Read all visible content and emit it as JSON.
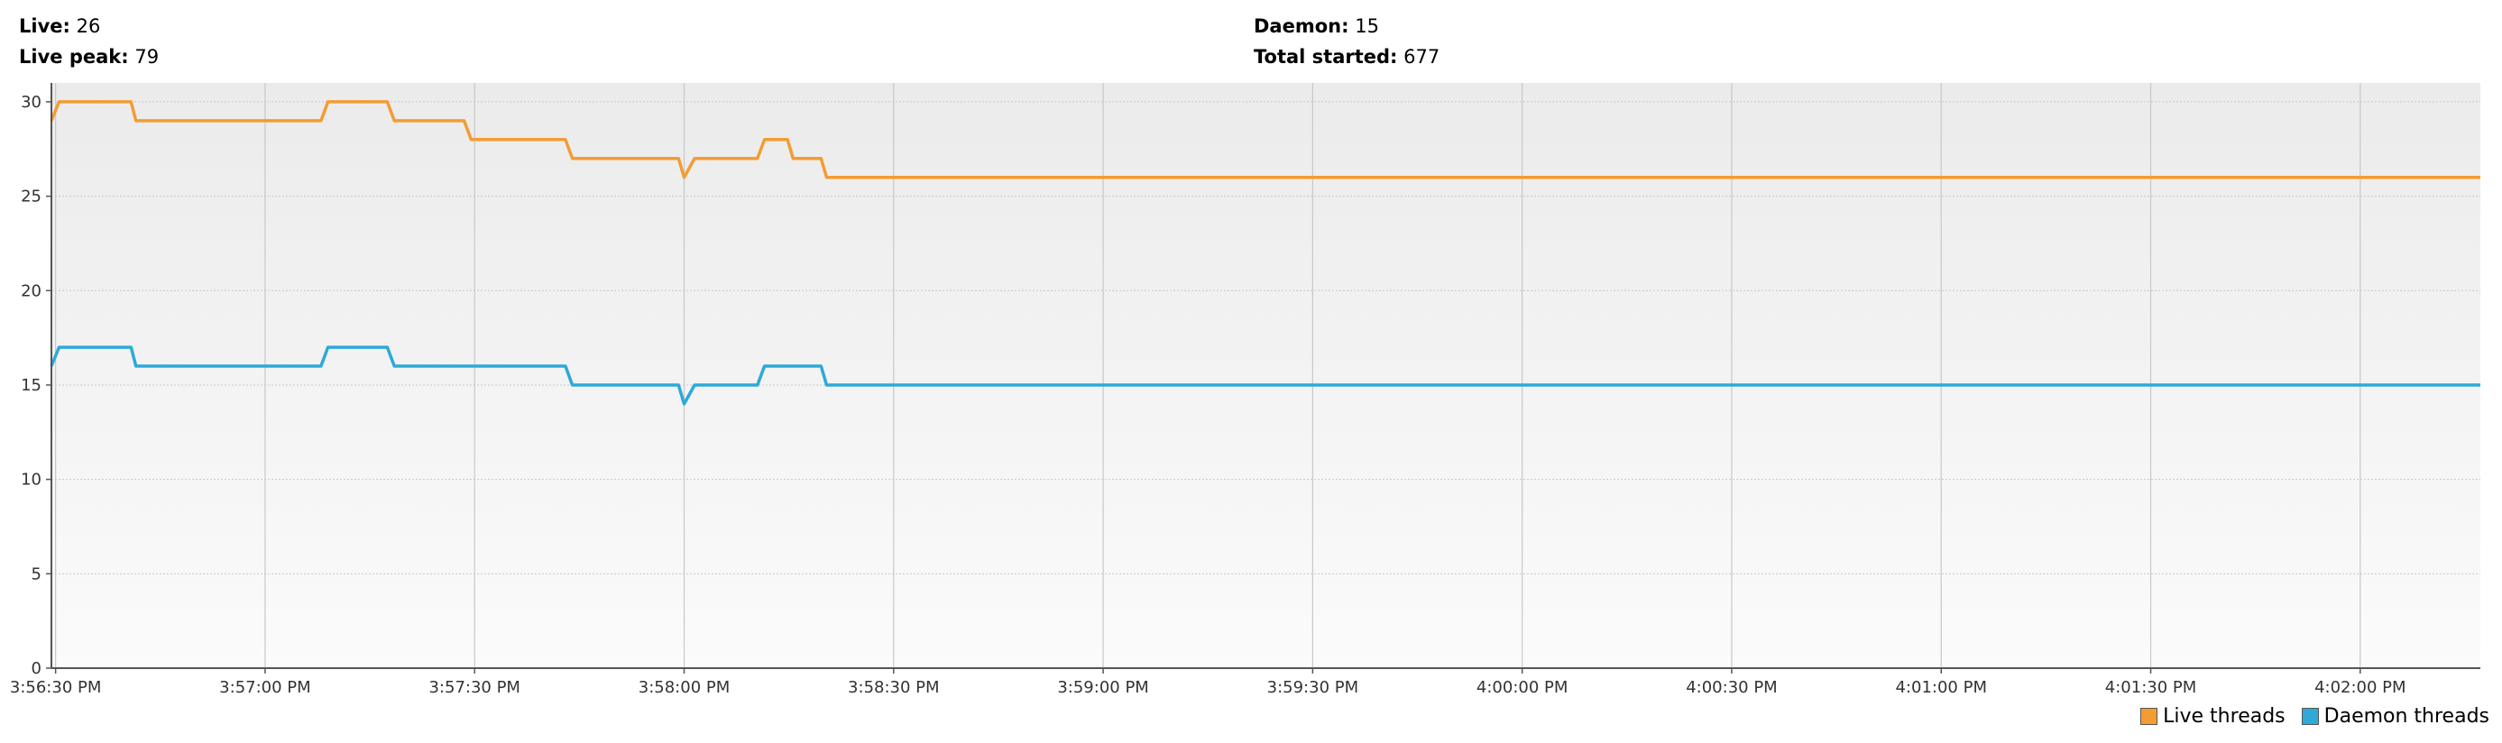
{
  "stats": {
    "live_label": "Live:",
    "live_value": "26",
    "live_peak_label": "Live peak:",
    "live_peak_value": "79",
    "daemon_label": "Daemon:",
    "daemon_value": "15",
    "total_started_label": "Total started:",
    "total_started_value": "677"
  },
  "colors": {
    "live": "#f39c34",
    "daemon": "#2ea9d8"
  },
  "chart_data": {
    "type": "line",
    "title": "",
    "xlabel": "",
    "ylabel": "",
    "x_ticks": [
      "3:56:30 PM",
      "3:57:00 PM",
      "3:57:30 PM",
      "3:58:00 PM",
      "3:58:30 PM",
      "3:59:00 PM",
      "3:59:30 PM",
      "4:00:00 PM",
      "4:00:30 PM",
      "4:01:00 PM",
      "4:01:30 PM",
      "4:02:00 PM"
    ],
    "x_tick_seconds": [
      14190,
      14220,
      14250,
      14280,
      14310,
      14340,
      14370,
      14400,
      14430,
      14460,
      14490,
      14520
    ],
    "xlim": [
      14189.4,
      14537.2
    ],
    "y_ticks": [
      0,
      5,
      10,
      15,
      20,
      25,
      30
    ],
    "ylim": [
      0,
      31
    ],
    "grid": true,
    "legend_position": "bottom-right",
    "series": [
      {
        "name": "Live threads",
        "color": "#f39c34",
        "points": [
          [
            14189.4,
            29
          ],
          [
            14190.5,
            30
          ],
          [
            14200.8,
            30
          ],
          [
            14201.5,
            29
          ],
          [
            14228,
            29
          ],
          [
            14229,
            30
          ],
          [
            14237.5,
            30
          ],
          [
            14238.5,
            29
          ],
          [
            14248.5,
            29
          ],
          [
            14249.5,
            28
          ],
          [
            14263,
            28
          ],
          [
            14264,
            27
          ],
          [
            14279.2,
            27
          ],
          [
            14280,
            26
          ],
          [
            14281.5,
            27
          ],
          [
            14290.5,
            27
          ],
          [
            14291.5,
            28
          ],
          [
            14294.8,
            28
          ],
          [
            14295.6,
            27
          ],
          [
            14299.6,
            27
          ],
          [
            14300.4,
            26
          ],
          [
            14537.2,
            26
          ]
        ]
      },
      {
        "name": "Daemon threads",
        "color": "#2ea9d8",
        "points": [
          [
            14189.4,
            16
          ],
          [
            14190.5,
            17
          ],
          [
            14200.8,
            17
          ],
          [
            14201.5,
            16
          ],
          [
            14228,
            16
          ],
          [
            14229,
            17
          ],
          [
            14237.5,
            17
          ],
          [
            14238.5,
            16
          ],
          [
            14263,
            16
          ],
          [
            14264,
            15
          ],
          [
            14279.2,
            15
          ],
          [
            14280,
            14
          ],
          [
            14281.5,
            15
          ],
          [
            14290.5,
            15
          ],
          [
            14291.5,
            16
          ],
          [
            14299.6,
            16
          ],
          [
            14300.4,
            15
          ],
          [
            14537.2,
            15
          ]
        ]
      }
    ]
  }
}
